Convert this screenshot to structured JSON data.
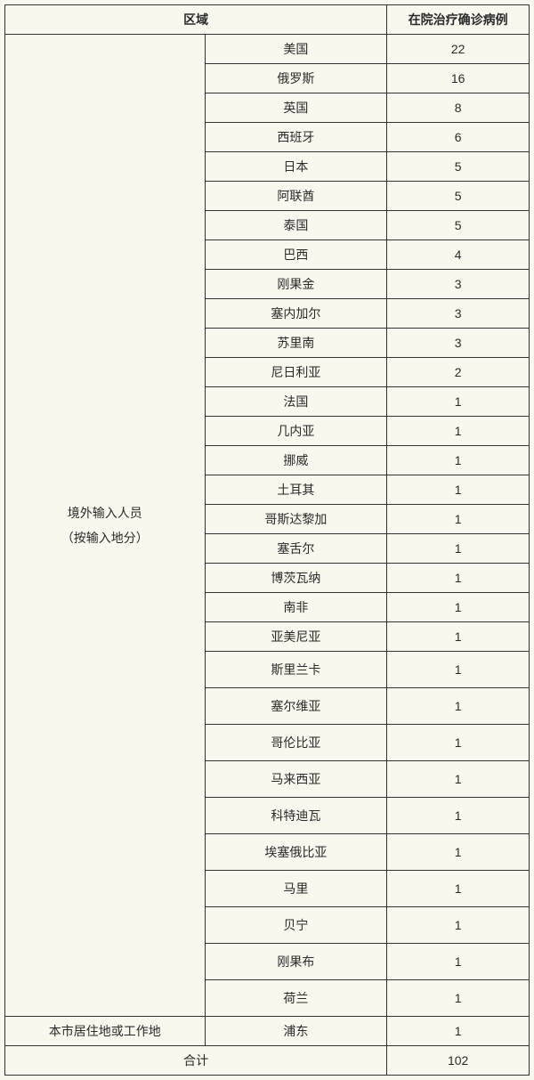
{
  "table": {
    "headers": {
      "region": "区域",
      "cases": "在院治疗确诊病例"
    },
    "group_label_line1": "境外输入人员",
    "group_label_line2": "（按输入地分）",
    "rows": [
      {
        "country": "美国",
        "cases": "22"
      },
      {
        "country": "俄罗斯",
        "cases": "16"
      },
      {
        "country": "英国",
        "cases": "8"
      },
      {
        "country": "西班牙",
        "cases": "6"
      },
      {
        "country": "日本",
        "cases": "5"
      },
      {
        "country": "阿联酋",
        "cases": "5"
      },
      {
        "country": "泰国",
        "cases": "5"
      },
      {
        "country": "巴西",
        "cases": "4"
      },
      {
        "country": "刚果金",
        "cases": "3"
      },
      {
        "country": "塞内加尔",
        "cases": "3"
      },
      {
        "country": "苏里南",
        "cases": "3"
      },
      {
        "country": "尼日利亚",
        "cases": "2"
      },
      {
        "country": "法国",
        "cases": "1"
      },
      {
        "country": "几内亚",
        "cases": "1"
      },
      {
        "country": "挪威",
        "cases": "1"
      },
      {
        "country": "土耳其",
        "cases": "1"
      },
      {
        "country": "哥斯达黎加",
        "cases": "1"
      },
      {
        "country": "塞舌尔",
        "cases": "1"
      },
      {
        "country": "博茨瓦纳",
        "cases": "1"
      },
      {
        "country": "南非",
        "cases": "1"
      },
      {
        "country": "亚美尼亚",
        "cases": "1"
      },
      {
        "country": "斯里兰卡",
        "cases": "1"
      },
      {
        "country": "塞尔维亚",
        "cases": "1"
      },
      {
        "country": "哥伦比亚",
        "cases": "1"
      },
      {
        "country": "马来西亚",
        "cases": "1"
      },
      {
        "country": "科特迪瓦",
        "cases": "1"
      },
      {
        "country": "埃塞俄比亚",
        "cases": "1"
      },
      {
        "country": "马里",
        "cases": "1"
      },
      {
        "country": "贝宁",
        "cases": "1"
      },
      {
        "country": "刚果布",
        "cases": "1"
      },
      {
        "country": "荷兰",
        "cases": "1"
      }
    ],
    "local_row": {
      "label": "本市居住地或工作地",
      "location": "浦东",
      "cases": "1"
    },
    "total_row": {
      "label": "合计",
      "cases": "102"
    }
  },
  "style": {
    "background_color": "#f9f7ee",
    "border_color": "#333333",
    "text_color": "#2a2a2a",
    "header_fontsize": 14,
    "cell_fontsize": 14,
    "col_widths": {
      "region": 225,
      "country": 205,
      "cases": 160
    },
    "tall_row_start_index": 21
  }
}
